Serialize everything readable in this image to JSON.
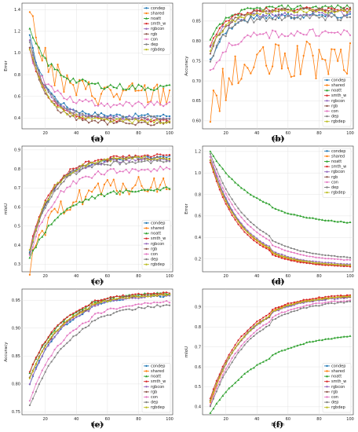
{
  "series_style": [
    {
      "name": "condep",
      "color": "#1f77b4",
      "marker": "circle"
    },
    {
      "name": "shared",
      "color": "#ff7f0e",
      "marker": "circle"
    },
    {
      "name": "noatt",
      "color": "#2ca02c",
      "marker": "triangle"
    },
    {
      "name": "smth_w",
      "color": "#d62728",
      "marker": "circle"
    },
    {
      "name": "rgbcon",
      "color": "#9467bd",
      "marker": "circle"
    },
    {
      "name": "rgb",
      "color": "#8c564b",
      "marker": "circle"
    },
    {
      "name": "con",
      "color": "#e377c2",
      "marker": "circle"
    },
    {
      "name": "dep",
      "color": "#7f7f7f",
      "marker": "circle"
    },
    {
      "name": "rgbdep",
      "color": "#bcbd22",
      "marker": "circle"
    }
  ],
  "chart_data": [
    {
      "panel": "a",
      "caption": "(a)",
      "type": "line",
      "xlabel": "Epoch",
      "ylabel": "Error",
      "xlim": [
        5,
        102
      ],
      "ylim": [
        0.3,
        1.46
      ],
      "xticks": [
        20,
        40,
        60,
        80,
        100
      ],
      "yticks": [
        0.4,
        0.6,
        0.8,
        1.0,
        1.2,
        1.4
      ],
      "legend": "top-right",
      "grid": true,
      "x": [
        10,
        100
      ],
      "series": [
        {
          "name": "condep",
          "start": 1.15,
          "end": 0.42,
          "rate": 0.09,
          "noise": 0.02
        },
        {
          "name": "shared",
          "start": 1.4,
          "end": 0.62,
          "rate": 0.09,
          "noise": 0.12
        },
        {
          "name": "noatt",
          "start": 1.2,
          "end": 0.68,
          "rate": 0.07,
          "noise": 0.03
        },
        {
          "name": "smth_w",
          "start": 1.05,
          "end": 0.38,
          "rate": 0.09,
          "noise": 0.02
        },
        {
          "name": "rgbcon",
          "start": 1.1,
          "end": 0.4,
          "rate": 0.09,
          "noise": 0.02
        },
        {
          "name": "rgb",
          "start": 1.05,
          "end": 0.35,
          "rate": 0.09,
          "noise": 0.02
        },
        {
          "name": "con",
          "start": 1.0,
          "end": 0.52,
          "rate": 0.08,
          "noise": 0.03
        },
        {
          "name": "dep",
          "start": 1.1,
          "end": 0.4,
          "rate": 0.09,
          "noise": 0.02
        },
        {
          "name": "rgbdep",
          "start": 1.05,
          "end": 0.37,
          "rate": 0.09,
          "noise": 0.02
        }
      ]
    },
    {
      "panel": "b",
      "caption": "(b)",
      "type": "line",
      "xlabel": "Epoch",
      "ylabel": "Accuracy",
      "xlim": [
        5,
        102
      ],
      "ylim": [
        0.58,
        0.895
      ],
      "xticks": [
        20,
        40,
        60,
        80,
        100
      ],
      "yticks": [
        0.6,
        0.65,
        0.7,
        0.75,
        0.8,
        0.85
      ],
      "legend": "bottom-right",
      "grid": true,
      "x": [
        10,
        100
      ],
      "series": [
        {
          "name": "condep",
          "start": 0.75,
          "end": 0.865,
          "rate": 0.1,
          "noise": 0.008
        },
        {
          "name": "shared",
          "start": 0.62,
          "end": 0.75,
          "rate": 0.08,
          "noise": 0.05
        },
        {
          "name": "noatt",
          "start": 0.8,
          "end": 0.885,
          "rate": 0.1,
          "noise": 0.006
        },
        {
          "name": "smth_w",
          "start": 0.79,
          "end": 0.88,
          "rate": 0.1,
          "noise": 0.006
        },
        {
          "name": "rgbcon",
          "start": 0.78,
          "end": 0.87,
          "rate": 0.1,
          "noise": 0.008
        },
        {
          "name": "rgb",
          "start": 0.77,
          "end": 0.878,
          "rate": 0.1,
          "noise": 0.006
        },
        {
          "name": "con",
          "start": 0.72,
          "end": 0.82,
          "rate": 0.09,
          "noise": 0.01
        },
        {
          "name": "dep",
          "start": 0.75,
          "end": 0.86,
          "rate": 0.1,
          "noise": 0.008
        },
        {
          "name": "rgbdep",
          "start": 0.77,
          "end": 0.875,
          "rate": 0.1,
          "noise": 0.006
        }
      ]
    },
    {
      "panel": "c",
      "caption": "(c)",
      "type": "line",
      "xlabel": "Epoch",
      "ylabel": "mIoU",
      "xlim": [
        5,
        102
      ],
      "ylim": [
        0.26,
        0.92
      ],
      "xticks": [
        20,
        40,
        60,
        80,
        100
      ],
      "yticks": [
        0.3,
        0.4,
        0.5,
        0.6,
        0.7,
        0.8,
        0.9
      ],
      "legend": "bottom-right",
      "grid": true,
      "x": [
        10,
        100
      ],
      "series": [
        {
          "name": "condep",
          "start": 0.36,
          "end": 0.86,
          "rate": 0.07,
          "noise": 0.01
        },
        {
          "name": "shared",
          "start": 0.28,
          "end": 0.72,
          "rate": 0.06,
          "noise": 0.05
        },
        {
          "name": "noatt",
          "start": 0.33,
          "end": 0.7,
          "rate": 0.05,
          "noise": 0.01
        },
        {
          "name": "smth_w",
          "start": 0.38,
          "end": 0.87,
          "rate": 0.07,
          "noise": 0.01
        },
        {
          "name": "rgbcon",
          "start": 0.37,
          "end": 0.85,
          "rate": 0.07,
          "noise": 0.01
        },
        {
          "name": "rgb",
          "start": 0.36,
          "end": 0.86,
          "rate": 0.07,
          "noise": 0.01
        },
        {
          "name": "con",
          "start": 0.34,
          "end": 0.8,
          "rate": 0.065,
          "noise": 0.015
        },
        {
          "name": "dep",
          "start": 0.36,
          "end": 0.84,
          "rate": 0.07,
          "noise": 0.01
        },
        {
          "name": "rgbdep",
          "start": 0.37,
          "end": 0.86,
          "rate": 0.07,
          "noise": 0.01
        }
      ]
    },
    {
      "panel": "d",
      "caption": "(d)",
      "type": "line",
      "xlabel": "Epoch",
      "ylabel": "Error",
      "xlim": [
        5,
        102
      ],
      "ylim": [
        0.08,
        1.25
      ],
      "xticks": [
        20,
        40,
        60,
        80,
        100
      ],
      "yticks": [
        0.2,
        0.4,
        0.6,
        0.8,
        1.0,
        1.2
      ],
      "legend": "top-right",
      "grid": true,
      "x": [
        10,
        100
      ],
      "series": [
        {
          "name": "condep",
          "start": 1.15,
          "end": 0.15,
          "rate": 0.05,
          "noise": 0.003
        },
        {
          "name": "shared",
          "start": 1.12,
          "end": 0.15,
          "rate": 0.05,
          "noise": 0.003
        },
        {
          "name": "noatt",
          "start": 1.2,
          "end": 0.53,
          "rate": 0.035,
          "noise": 0.004
        },
        {
          "name": "smth_w",
          "start": 1.1,
          "end": 0.15,
          "rate": 0.052,
          "noise": 0.003
        },
        {
          "name": "rgbcon",
          "start": 1.15,
          "end": 0.17,
          "rate": 0.05,
          "noise": 0.003
        },
        {
          "name": "rgb",
          "start": 1.12,
          "end": 0.16,
          "rate": 0.05,
          "noise": 0.003
        },
        {
          "name": "con",
          "start": 1.15,
          "end": 0.2,
          "rate": 0.045,
          "noise": 0.003
        },
        {
          "name": "dep",
          "start": 1.18,
          "end": 0.22,
          "rate": 0.042,
          "noise": 0.003
        },
        {
          "name": "rgbdep",
          "start": 1.12,
          "end": 0.16,
          "rate": 0.05,
          "noise": 0.003
        }
      ]
    },
    {
      "panel": "e",
      "caption": "(e)",
      "type": "line",
      "xlabel": "Epoch",
      "ylabel": "Accuracy",
      "xlim": [
        5,
        102
      ],
      "ylim": [
        0.745,
        0.97
      ],
      "xticks": [
        20,
        40,
        60,
        80,
        100
      ],
      "yticks": [
        0.75,
        0.8,
        0.85,
        0.9,
        0.95
      ],
      "legend": "bottom-right",
      "grid": true,
      "x": [
        10,
        100
      ],
      "series": [
        {
          "name": "condep",
          "start": 0.8,
          "end": 0.955,
          "rate": 0.05,
          "noise": 0.002
        },
        {
          "name": "shared",
          "start": 0.81,
          "end": 0.957,
          "rate": 0.05,
          "noise": 0.002
        },
        {
          "name": "noatt",
          "start": 0.82,
          "end": 0.96,
          "rate": 0.05,
          "noise": 0.002
        },
        {
          "name": "smth_w",
          "start": 0.82,
          "end": 0.96,
          "rate": 0.052,
          "noise": 0.002
        },
        {
          "name": "rgbcon",
          "start": 0.8,
          "end": 0.955,
          "rate": 0.05,
          "noise": 0.002
        },
        {
          "name": "rgb",
          "start": 0.81,
          "end": 0.957,
          "rate": 0.05,
          "noise": 0.002
        },
        {
          "name": "con",
          "start": 0.77,
          "end": 0.945,
          "rate": 0.045,
          "noise": 0.002
        },
        {
          "name": "dep",
          "start": 0.76,
          "end": 0.94,
          "rate": 0.042,
          "noise": 0.002
        },
        {
          "name": "rgbdep",
          "start": 0.81,
          "end": 0.957,
          "rate": 0.05,
          "noise": 0.002
        }
      ]
    },
    {
      "panel": "f",
      "caption": "(f)",
      "type": "line",
      "xlabel": "Epoch",
      "ylabel": "mIoU",
      "xlim": [
        5,
        102
      ],
      "ylim": [
        0.36,
        0.99
      ],
      "xticks": [
        20,
        40,
        60,
        80,
        100
      ],
      "yticks": [
        0.4,
        0.5,
        0.6,
        0.7,
        0.8,
        0.9
      ],
      "legend": "bottom-right",
      "grid": true,
      "x": [
        10,
        100
      ],
      "series": [
        {
          "name": "condep",
          "start": 0.43,
          "end": 0.945,
          "rate": 0.045,
          "noise": 0.003
        },
        {
          "name": "shared",
          "start": 0.42,
          "end": 0.95,
          "rate": 0.045,
          "noise": 0.003
        },
        {
          "name": "noatt",
          "start": 0.37,
          "end": 0.77,
          "rate": 0.03,
          "noise": 0.003
        },
        {
          "name": "smth_w",
          "start": 0.44,
          "end": 0.95,
          "rate": 0.047,
          "noise": 0.003
        },
        {
          "name": "rgbcon",
          "start": 0.43,
          "end": 0.94,
          "rate": 0.045,
          "noise": 0.003
        },
        {
          "name": "rgb",
          "start": 0.43,
          "end": 0.945,
          "rate": 0.045,
          "noise": 0.003
        },
        {
          "name": "con",
          "start": 0.41,
          "end": 0.93,
          "rate": 0.042,
          "noise": 0.003
        },
        {
          "name": "dep",
          "start": 0.4,
          "end": 0.925,
          "rate": 0.04,
          "noise": 0.003
        },
        {
          "name": "rgbdep",
          "start": 0.43,
          "end": 0.945,
          "rate": 0.045,
          "noise": 0.003
        }
      ]
    }
  ]
}
